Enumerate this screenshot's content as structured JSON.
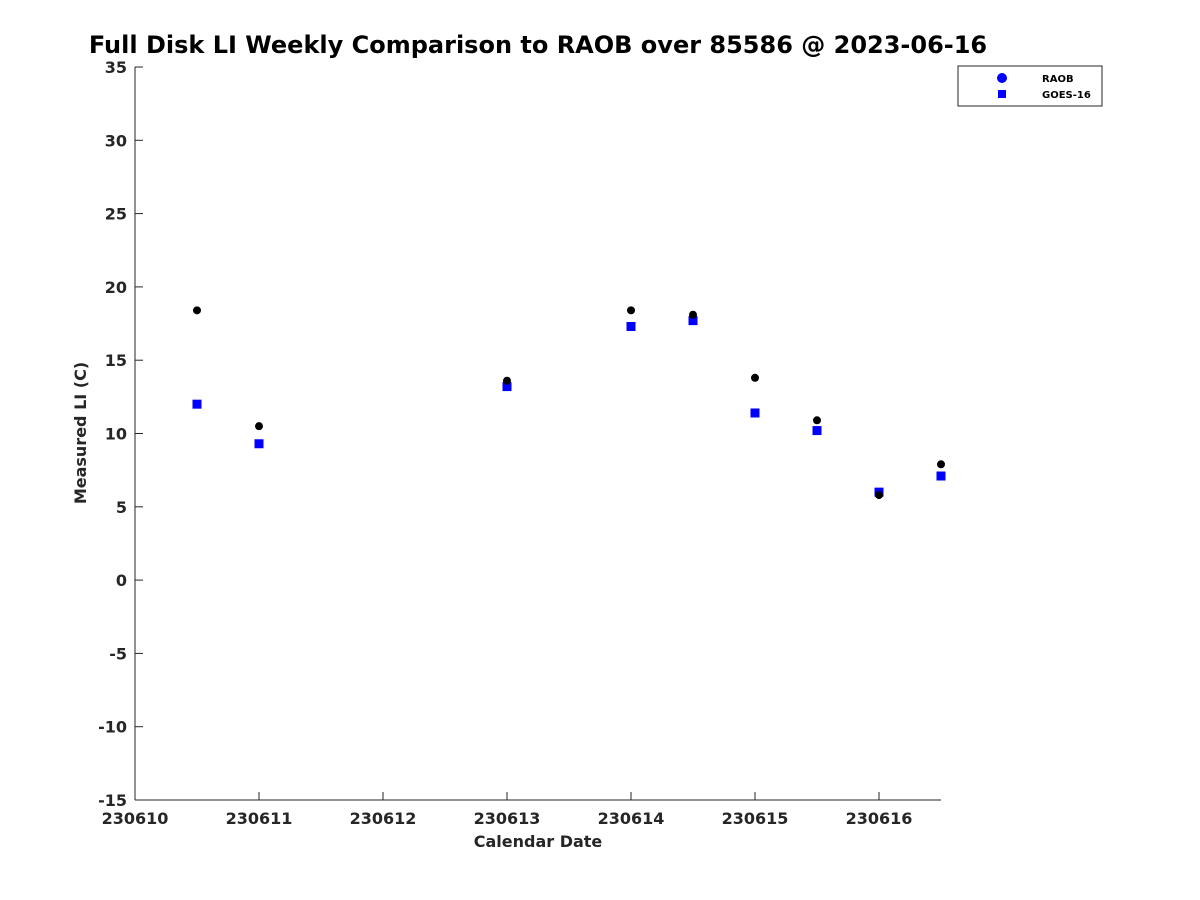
{
  "chart_data": {
    "type": "scatter",
    "title": "Full Disk LI Weekly Comparison to RAOB over 85586 @ 2023-06-16",
    "xlabel": "Calendar Date",
    "ylabel": "Measured LI (C)",
    "xlim": [
      230610,
      230616.5
    ],
    "ylim": [
      -15,
      35
    ],
    "x_ticks": [
      230610,
      230611,
      230612,
      230613,
      230614,
      230615,
      230616
    ],
    "x_tick_labels": [
      "230610",
      "230611",
      "230612",
      "230613",
      "230614",
      "230615",
      "230616"
    ],
    "y_ticks": [
      -15,
      -10,
      -5,
      0,
      5,
      10,
      15,
      20,
      25,
      30,
      35
    ],
    "y_tick_labels": [
      "-15",
      "-10",
      "-5",
      "0",
      "5",
      "10",
      "15",
      "20",
      "25",
      "30",
      "35"
    ],
    "grid": false,
    "legend_position": "top-right",
    "series": [
      {
        "name": "RAOB",
        "marker": "circle",
        "legend_color": "#0000ff",
        "color": "#000000",
        "x": [
          230610.5,
          230611,
          230613,
          230614,
          230614.5,
          230615,
          230615.5,
          230616,
          230616.5
        ],
        "y": [
          18.4,
          10.5,
          13.6,
          18.4,
          18.1,
          13.8,
          10.9,
          5.8,
          7.9
        ]
      },
      {
        "name": "GOES-16",
        "marker": "square",
        "color": "#0000ff",
        "x": [
          230610.5,
          230611,
          230613,
          230614,
          230614.5,
          230615,
          230615.5,
          230616,
          230616.5
        ],
        "y": [
          12.0,
          9.3,
          13.2,
          17.3,
          17.7,
          11.4,
          10.2,
          6.0,
          7.1
        ]
      }
    ]
  }
}
